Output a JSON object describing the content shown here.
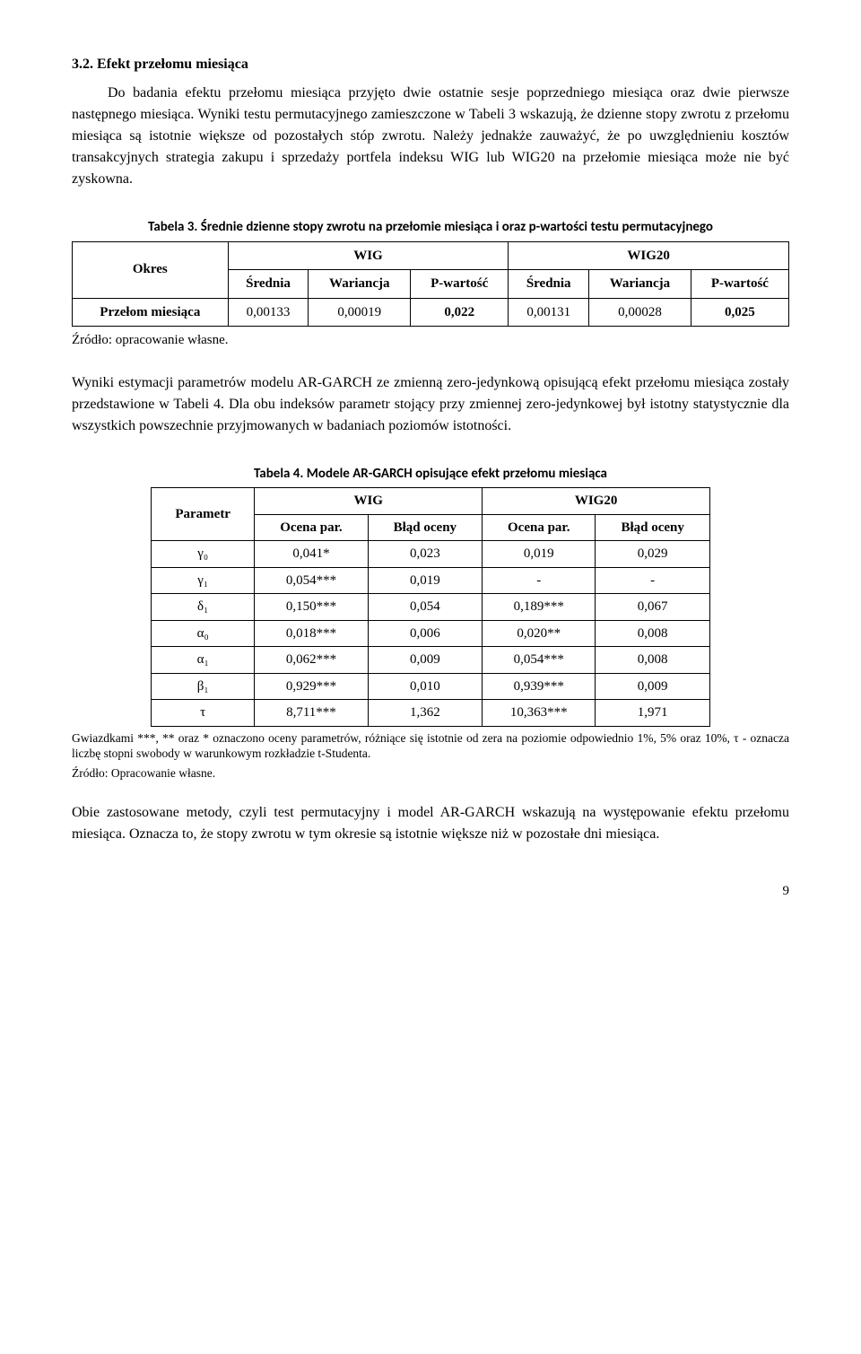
{
  "section": {
    "title": "3.2. Efekt przełomu miesiąca"
  },
  "para1": "Do badania efektu przełomu miesiąca przyjęto dwie ostatnie sesje poprzedniego miesiąca oraz dwie pierwsze następnego miesiąca. Wyniki testu permutacyjnego zamieszczone w Tabeli 3 wskazują, że dzienne stopy zwrotu z przełomu miesiąca są istotnie większe od pozostałych stóp zwrotu. Należy jednakże zauważyć, że po uwzględnieniu kosztów transakcyjnych strategia zakupu i sprzedaży portfela indeksu WIG lub WIG20 na przełomie miesiąca może nie być zyskowna.",
  "table3": {
    "caption": "Tabela 3. Średnie dzienne stopy zwrotu na przełomie miesiąca i oraz p-wartości testu permutacyjnego",
    "col_period": "Okres",
    "group_wig": "WIG",
    "group_wig20": "WIG20",
    "h_mean": "Średnia",
    "h_var": "Wariancja",
    "h_pval": "P-wartość",
    "row_label": "Przełom miesiąca",
    "wig_mean": "0,00133",
    "wig_var": "0,00019",
    "wig_pval": "0,022",
    "wig20_mean": "0,00131",
    "wig20_var": "0,00028",
    "wig20_pval": "0,025",
    "source": "Źródło: opracowanie własne."
  },
  "para2": "Wyniki estymacji parametrów modelu AR-GARCH ze zmienną zero-jedynkową opisującą efekt przełomu miesiąca zostały przedstawione w Tabeli 4. Dla obu indeksów parametr stojący przy zmiennej zero-jedynkowej był istotny statystycznie dla wszystkich powszechnie przyjmowanych w badaniach poziomów istotności.",
  "table4": {
    "caption": "Tabela 4. Modele AR-GARCH opisujące efekt przełomu miesiąca",
    "col_param": "Parametr",
    "group_wig": "WIG",
    "group_wig20": "WIG20",
    "h_est": "Ocena par.",
    "h_se": "Błąd oceny",
    "rows": [
      {
        "p": "γ₀",
        "we": "0,041*",
        "ws": "0,023",
        "w2e": "0,019",
        "w2s": "0,029"
      },
      {
        "p": "γ₁",
        "we": "0,054***",
        "ws": "0,019",
        "w2e": "-",
        "w2s": "-"
      },
      {
        "p": "δ₁",
        "we": "0,150***",
        "ws": "0,054",
        "w2e": "0,189***",
        "w2s": "0,067"
      },
      {
        "p": "α₀",
        "we": "0,018***",
        "ws": "0,006",
        "w2e": "0,020**",
        "w2s": "0,008"
      },
      {
        "p": "α₁",
        "we": "0,062***",
        "ws": "0,009",
        "w2e": "0,054***",
        "w2s": "0,008"
      },
      {
        "p": "β₁",
        "we": "0,929***",
        "ws": "0,010",
        "w2e": "0,939***",
        "w2s": "0,009"
      },
      {
        "p": "τ",
        "we": "8,711***",
        "ws": "1,362",
        "w2e": "10,363***",
        "w2s": "1,971"
      }
    ],
    "footnote": "Gwiazdkami ***, ** oraz * oznaczono oceny parametrów, różniące się istotnie od zera na poziomie odpowiednio 1%, 5% oraz 10%, τ - oznacza liczbę stopni swobody w warunkowym rozkładzie t-Studenta.",
    "source": "Źródło: Opracowanie własne."
  },
  "para3": "Obie zastosowane metody, czyli test permutacyjny i model AR-GARCH wskazują na występowanie efektu przełomu miesiąca. Oznacza to, że stopy zwrotu w tym okresie są istotnie większe niż w pozostałe dni miesiąca.",
  "page_number": "9"
}
